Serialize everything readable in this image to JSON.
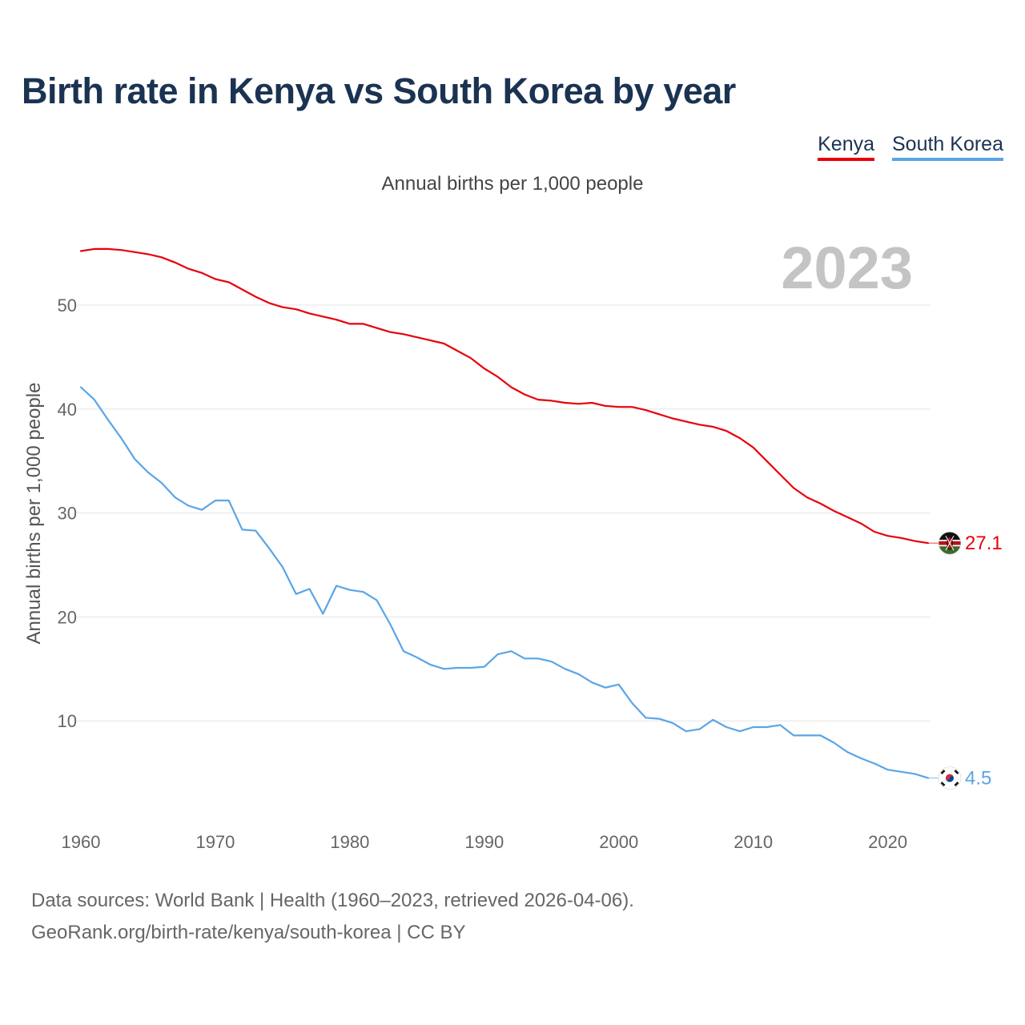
{
  "title": "Birth rate in Kenya vs South Korea by year",
  "subtitle": "Annual births per 1,000 people",
  "legend": {
    "kenya": "Kenya",
    "south_korea": "South Korea"
  },
  "source": {
    "line1": "Data sources: World Bank | Health (1960–2023, retrieved 2026-04-06).",
    "line2": "GeoRank.org/birth-rate/kenya/south-korea | CC BY"
  },
  "chart_data": {
    "type": "line",
    "title": "Birth rate in Kenya vs South Korea by year",
    "xlabel": "",
    "ylabel": "Annual births per 1,000 people",
    "year_watermark": "2023",
    "xlim": [
      1960,
      2023
    ],
    "ylim": [
      0,
      55
    ],
    "x_ticks": [
      1960,
      1970,
      1980,
      1990,
      2000,
      2010,
      2020
    ],
    "y_ticks": [
      10,
      20,
      30,
      40,
      50
    ],
    "grid": true,
    "legend_position": "top-right",
    "x": [
      1960,
      1961,
      1962,
      1963,
      1964,
      1965,
      1966,
      1967,
      1968,
      1969,
      1970,
      1971,
      1972,
      1973,
      1974,
      1975,
      1976,
      1977,
      1978,
      1979,
      1980,
      1981,
      1982,
      1983,
      1984,
      1985,
      1986,
      1987,
      1988,
      1989,
      1990,
      1991,
      1992,
      1993,
      1994,
      1995,
      1996,
      1997,
      1998,
      1999,
      2000,
      2001,
      2002,
      2003,
      2004,
      2005,
      2006,
      2007,
      2008,
      2009,
      2010,
      2011,
      2012,
      2013,
      2014,
      2015,
      2016,
      2017,
      2018,
      2019,
      2020,
      2021,
      2022,
      2023
    ],
    "series": [
      {
        "name": "Kenya",
        "color": "#e8000b",
        "end_label": "27.1",
        "values": [
          55.2,
          55.4,
          55.4,
          55.3,
          55.1,
          54.9,
          54.6,
          54.1,
          53.5,
          53.1,
          52.5,
          52.2,
          51.5,
          50.8,
          50.2,
          49.8,
          49.6,
          49.2,
          48.9,
          48.6,
          48.2,
          48.2,
          47.8,
          47.4,
          47.2,
          46.9,
          46.6,
          46.3,
          45.6,
          44.9,
          43.9,
          43.1,
          42.1,
          41.4,
          40.9,
          40.8,
          40.6,
          40.5,
          40.6,
          40.3,
          40.2,
          40.2,
          39.9,
          39.5,
          39.1,
          38.8,
          38.5,
          38.3,
          37.9,
          37.2,
          36.3,
          35.0,
          33.7,
          32.4,
          31.5,
          30.9,
          30.2,
          29.6,
          29.0,
          28.2,
          27.8,
          27.6,
          27.3,
          27.1
        ]
      },
      {
        "name": "South Korea",
        "color": "#5aa5e6",
        "end_label": "4.5",
        "values": [
          42.1,
          40.9,
          39.0,
          37.2,
          35.2,
          33.9,
          32.9,
          31.5,
          30.7,
          30.3,
          31.2,
          31.2,
          28.4,
          28.3,
          26.6,
          24.8,
          22.2,
          22.7,
          20.3,
          23.0,
          22.6,
          22.4,
          21.6,
          19.3,
          16.7,
          16.1,
          15.4,
          15.0,
          15.1,
          15.1,
          15.2,
          16.4,
          16.7,
          16.0,
          16.0,
          15.7,
          15.0,
          14.5,
          13.7,
          13.2,
          13.5,
          11.7,
          10.3,
          10.2,
          9.8,
          9.0,
          9.2,
          10.1,
          9.4,
          9.0,
          9.4,
          9.4,
          9.6,
          8.6,
          8.6,
          8.6,
          7.9,
          7.0,
          6.4,
          5.9,
          5.3,
          5.1,
          4.9,
          4.5
        ]
      }
    ]
  }
}
